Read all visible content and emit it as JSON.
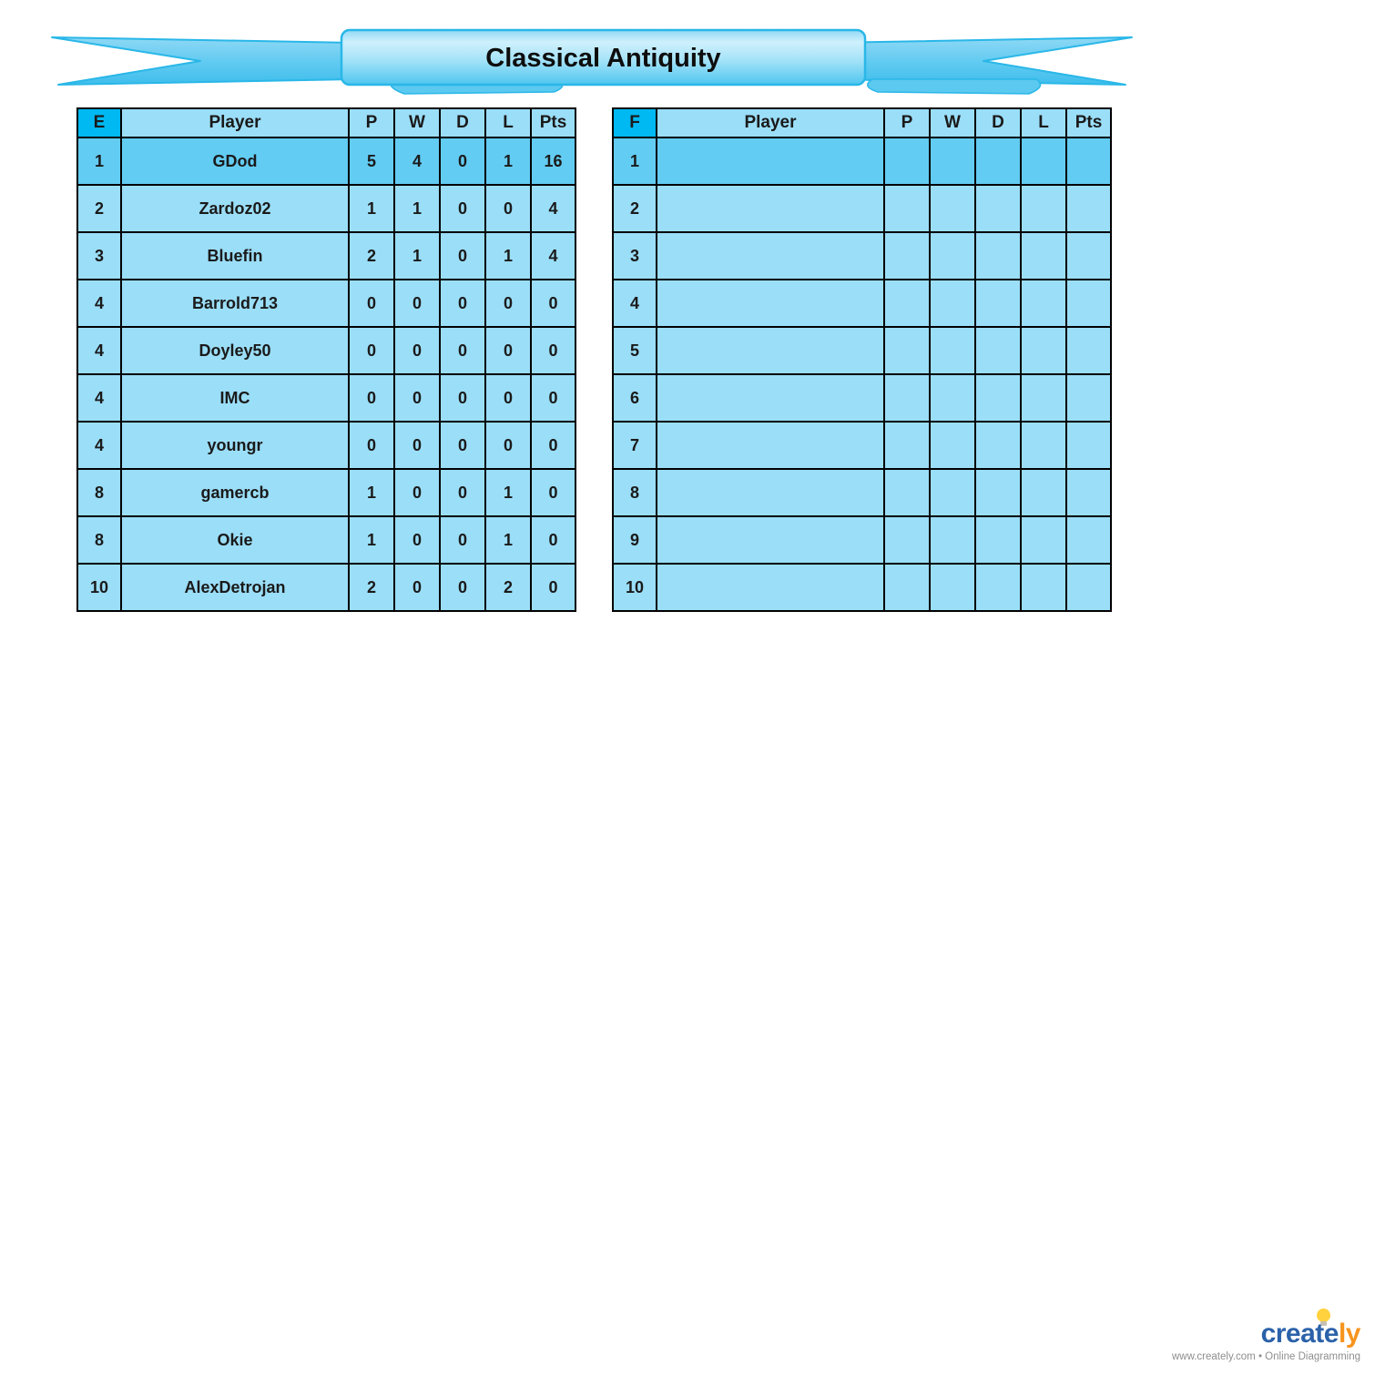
{
  "banner": {
    "title": "Classical Antiquity"
  },
  "tables": [
    {
      "group": "E",
      "headers": [
        "E",
        "Player",
        "P",
        "W",
        "D",
        "L",
        "Pts"
      ],
      "rows": [
        {
          "rank": "1",
          "player": "GDod",
          "p": "5",
          "w": "4",
          "d": "0",
          "l": "1",
          "pts": "16",
          "highlight": true
        },
        {
          "rank": "2",
          "player": "Zardoz02",
          "p": "1",
          "w": "1",
          "d": "0",
          "l": "0",
          "pts": "4"
        },
        {
          "rank": "3",
          "player": "Bluefin",
          "p": "2",
          "w": "1",
          "d": "0",
          "l": "1",
          "pts": "4"
        },
        {
          "rank": "4",
          "player": "Barrold713",
          "p": "0",
          "w": "0",
          "d": "0",
          "l": "0",
          "pts": "0"
        },
        {
          "rank": "4",
          "player": "Doyley50",
          "p": "0",
          "w": "0",
          "d": "0",
          "l": "0",
          "pts": "0"
        },
        {
          "rank": "4",
          "player": "IMC",
          "p": "0",
          "w": "0",
          "d": "0",
          "l": "0",
          "pts": "0"
        },
        {
          "rank": "4",
          "player": "youngr",
          "p": "0",
          "w": "0",
          "d": "0",
          "l": "0",
          "pts": "0"
        },
        {
          "rank": "8",
          "player": "gamercb",
          "p": "1",
          "w": "0",
          "d": "0",
          "l": "1",
          "pts": "0"
        },
        {
          "rank": "8",
          "player": "Okie",
          "p": "1",
          "w": "0",
          "d": "0",
          "l": "1",
          "pts": "0"
        },
        {
          "rank": "10",
          "player": "AlexDetrojan",
          "p": "2",
          "w": "0",
          "d": "0",
          "l": "2",
          "pts": "0"
        }
      ]
    },
    {
      "group": "F",
      "headers": [
        "F",
        "Player",
        "P",
        "W",
        "D",
        "L",
        "Pts"
      ],
      "rows": [
        {
          "rank": "1",
          "player": "",
          "p": "",
          "w": "",
          "d": "",
          "l": "",
          "pts": "",
          "highlight": true
        },
        {
          "rank": "2",
          "player": "",
          "p": "",
          "w": "",
          "d": "",
          "l": "",
          "pts": ""
        },
        {
          "rank": "3",
          "player": "",
          "p": "",
          "w": "",
          "d": "",
          "l": "",
          "pts": ""
        },
        {
          "rank": "4",
          "player": "",
          "p": "",
          "w": "",
          "d": "",
          "l": "",
          "pts": ""
        },
        {
          "rank": "5",
          "player": "",
          "p": "",
          "w": "",
          "d": "",
          "l": "",
          "pts": ""
        },
        {
          "rank": "6",
          "player": "",
          "p": "",
          "w": "",
          "d": "",
          "l": "",
          "pts": ""
        },
        {
          "rank": "7",
          "player": "",
          "p": "",
          "w": "",
          "d": "",
          "l": "",
          "pts": ""
        },
        {
          "rank": "8",
          "player": "",
          "p": "",
          "w": "",
          "d": "",
          "l": "",
          "pts": ""
        },
        {
          "rank": "9",
          "player": "",
          "p": "",
          "w": "",
          "d": "",
          "l": "",
          "pts": ""
        },
        {
          "rank": "10",
          "player": "",
          "p": "",
          "w": "",
          "d": "",
          "l": "",
          "pts": ""
        }
      ]
    }
  ],
  "colors": {
    "header_accent": "#00b9f2",
    "row_light": "#9bdef8",
    "row_highlight": "#63ccf3",
    "table_border": "#000000",
    "ribbon_fill_light": "#cfeffb",
    "ribbon_fill_dark": "#4fc5f0",
    "ribbon_stroke": "#29b7e8"
  },
  "footer": {
    "brand_blue": "create",
    "brand_orange": "ly",
    "tagline": "www.creately.com • Online Diagramming"
  }
}
